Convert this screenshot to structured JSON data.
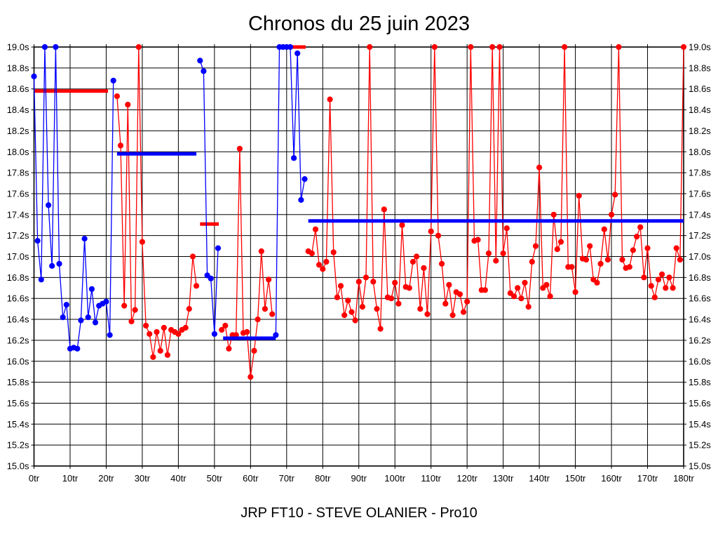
{
  "page": {
    "background": "#ffffff"
  },
  "chart_data": {
    "type": "line",
    "title": "Chronos du 25 juin 2023",
    "subtitle": "JRP FT10 - STEVE OLANIER - Pro10",
    "grid": true,
    "legend": "none",
    "x_axis": {
      "min": 0,
      "max": 180,
      "tick_step": 10,
      "label_suffix": "tr"
    },
    "y_axis": {
      "min": 15.0,
      "max": 19.0,
      "tick_step": 0.2,
      "label_suffix": "s",
      "decimals": 1
    },
    "colors": {
      "red": "#FF0000",
      "blue": "#0000FF",
      "grid": "#000000"
    },
    "series": [
      {
        "name": "blue-run-1",
        "color": "blue",
        "start_lap": 0,
        "values": [
          18.72,
          17.15,
          16.78,
          19.0,
          17.49,
          16.91,
          19.0,
          16.93,
          16.42,
          16.54,
          16.12,
          16.13,
          16.12,
          16.39,
          17.17,
          16.42,
          16.69,
          16.37,
          16.53,
          16.55,
          16.57,
          16.25,
          18.68
        ]
      },
      {
        "name": "red-run-1",
        "color": "red",
        "start_lap": 23,
        "values": [
          18.53,
          18.06,
          16.53,
          18.45,
          16.38,
          16.49,
          19.0,
          17.14,
          16.34,
          16.26,
          16.04,
          16.28,
          16.1,
          16.32,
          16.06,
          16.3,
          16.28,
          16.26,
          16.3,
          16.32,
          16.5,
          17.0,
          16.72
        ]
      },
      {
        "name": "blue-run-2",
        "color": "blue",
        "start_lap": 46,
        "values": [
          18.87,
          18.77,
          16.82,
          16.79,
          16.26,
          17.08
        ]
      },
      {
        "name": "red-run-2",
        "color": "red",
        "start_lap": 52,
        "values": [
          16.3,
          16.34,
          16.12,
          16.25,
          16.25,
          18.03,
          16.27,
          16.28,
          15.85,
          16.1,
          16.4,
          17.05,
          16.5,
          16.78,
          16.45
        ]
      },
      {
        "name": "blue-run-3",
        "color": "blue",
        "start_lap": 67,
        "values": [
          16.25,
          19.0,
          19.0,
          19.0,
          19.0,
          17.94,
          18.94,
          17.54,
          17.74
        ]
      },
      {
        "name": "red-run-3",
        "color": "red",
        "start_lap": 76,
        "values": [
          17.05,
          17.03,
          17.26,
          16.92,
          16.88,
          16.95,
          18.5,
          17.04,
          16.61,
          16.72,
          16.44,
          16.58,
          16.47,
          16.39,
          16.76,
          16.52,
          16.8,
          19.0,
          16.76,
          16.5,
          16.31,
          17.45,
          16.61,
          16.6,
          16.75,
          16.55,
          17.3,
          16.71,
          16.7,
          16.95,
          17.0,
          16.5,
          16.89,
          16.45,
          17.24,
          19.0,
          17.2,
          16.93,
          16.55,
          16.73,
          16.44,
          16.66,
          16.64,
          16.47,
          16.57,
          19.0,
          17.15,
          17.16,
          16.68,
          16.68,
          17.03,
          19.0,
          16.96,
          19.0,
          17.03,
          17.27,
          16.65,
          16.62,
          16.7,
          16.6,
          16.75,
          16.52,
          16.95,
          17.1,
          17.85,
          16.7,
          16.73,
          16.62,
          17.4,
          17.07,
          17.14,
          19.0,
          16.9,
          16.9,
          16.66,
          17.58,
          16.98,
          16.97,
          17.1,
          16.78,
          16.75,
          16.93,
          17.26,
          16.97,
          17.4,
          17.59,
          19.0,
          16.97,
          16.89,
          16.9,
          17.06,
          17.19,
          17.28,
          16.8,
          17.08,
          16.72,
          16.61,
          16.78,
          16.83,
          16.7,
          16.8,
          16.7,
          17.08,
          16.97,
          19.0
        ]
      }
    ],
    "average_bars": [
      {
        "name": "avg-bar-red-1",
        "color": "red",
        "from_lap": 0,
        "to_lap": 20.5,
        "value": 18.58
      },
      {
        "name": "avg-bar-blue-1",
        "color": "blue",
        "from_lap": 23,
        "to_lap": 45,
        "value": 17.98
      },
      {
        "name": "avg-bar-red-2",
        "color": "red",
        "from_lap": 46,
        "to_lap": 51.2,
        "value": 17.31
      },
      {
        "name": "avg-bar-blue-2",
        "color": "blue",
        "from_lap": 52.4,
        "to_lap": 67,
        "value": 16.22
      },
      {
        "name": "avg-bar-red-3",
        "color": "red",
        "from_lap": 70.9,
        "to_lap": 75.3,
        "value": 19.0
      },
      {
        "name": "avg-bar-blue-3",
        "color": "blue",
        "from_lap": 76,
        "to_lap": 180,
        "value": 17.34
      }
    ]
  }
}
